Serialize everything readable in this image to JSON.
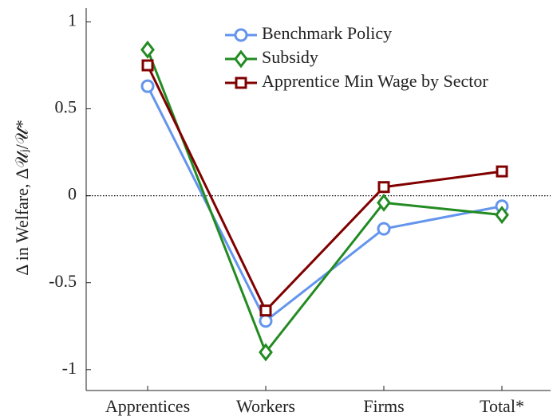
{
  "chart_data": {
    "type": "line",
    "ylabel": "Δ in Welfare, Δ𝒰ⱼ/𝒰*",
    "categories": [
      "Apprentices",
      "Workers",
      "Firms",
      "Total*"
    ],
    "series": [
      {
        "name": "Benchmark Policy",
        "color": "#6495ed",
        "marker": "circle",
        "values": [
          0.63,
          -0.72,
          -0.19,
          -0.06
        ]
      },
      {
        "name": "Subsidy",
        "color": "#228b22",
        "marker": "diamond",
        "values": [
          0.84,
          -0.9,
          -0.04,
          -0.11
        ]
      },
      {
        "name": "Apprentice Min Wage by Sector",
        "color": "#800000",
        "marker": "square",
        "values": [
          0.75,
          -0.66,
          0.05,
          0.14
        ]
      }
    ],
    "ylim": [
      -1.12,
      1.08
    ],
    "yticks": [
      -1,
      -0.5,
      0,
      0.5,
      1
    ],
    "zero_line": true,
    "legend": "upper right"
  }
}
